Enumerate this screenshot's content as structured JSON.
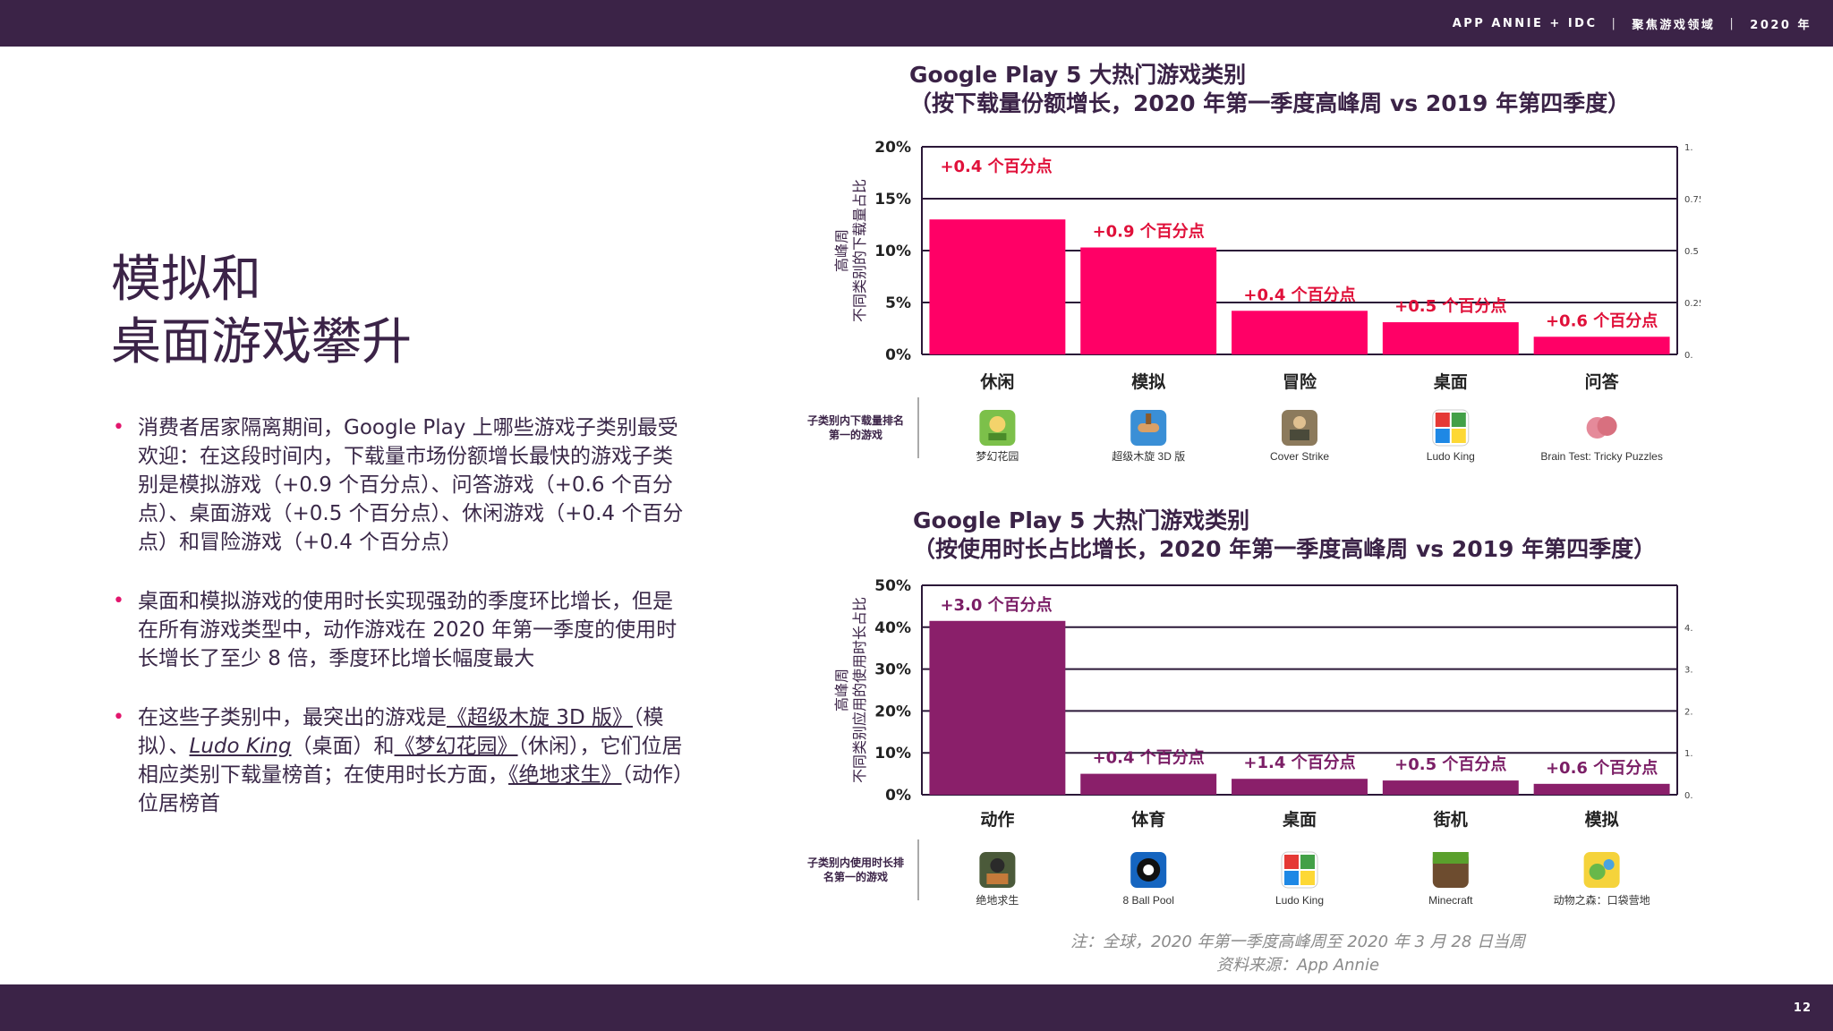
{
  "header": {
    "segments": [
      "APP ANNIE + IDC",
      "聚焦游戏领域",
      "2020 年"
    ],
    "separator": "|"
  },
  "footer": {
    "page_number": "12"
  },
  "title": {
    "line1": "模拟和",
    "line2": "桌面游戏攀升"
  },
  "bullets": {
    "b1": "消费者居家隔离期间，Google Play 上哪些游戏子类别最受欢迎：在这段时间内，下载量市场份额增长最快的游戏子类别是模拟游戏（+0.9 个百分点）、问答游戏（+0.6 个百分点）、桌面游戏（+0.5 个百分点）、休闲游戏（+0.4 个百分点）和冒险游戏（+0.4 个百分点）",
    "b2": "桌面和模拟游戏的使用时长实现强劲的季度环比增长，但是在所有游戏类型中，动作游戏在 2020 年第一季度的使用时长增长了至少 8 倍，季度环比增长幅度最大",
    "b3": {
      "t1": "在这些子类别中，最突出的游戏是",
      "l1": "《超级木旋 3D 版》",
      "t2": "（模拟）、",
      "l2": "Ludo King",
      "t3": "（桌面）和",
      "l3": "《梦幻花园》",
      "t4": "（休闲），它们位居相应类别下载量榜首；在使用时长方面，",
      "l4": "《绝地求生》",
      "t5": "（动作）位居榜首"
    }
  },
  "chart_data": [
    {
      "type": "bar",
      "title": "Google Play 5 大热门游戏类别",
      "subtitle": "（按下载量份额增长，2020 年第一季度高峰周 vs 2019 年第四季度）",
      "ylabel": "高峰周 不同类别的下载量占比",
      "ylabel_lines": [
        "高峰周",
        "不同类别的下载量占比"
      ],
      "ylim": [
        0,
        20
      ],
      "yticks": [
        "0%",
        "5%",
        "10%",
        "15%",
        "20%"
      ],
      "ytick_values": [
        0,
        5,
        10,
        15,
        20
      ],
      "right_ticks": [
        "0.",
        "0.25",
        "0.5",
        "0.75",
        "1."
      ],
      "categories": [
        "休闲",
        "模拟",
        "冒险",
        "桌面",
        "问答"
      ],
      "values": [
        13,
        10.3,
        4.2,
        3.1,
        1.7
      ],
      "data_labels": [
        "+0.4 个百分点",
        "+0.9 个百分点",
        "+0.4 个百分点",
        "+0.5 个百分点",
        "+0.6 个百分点"
      ],
      "row_label_lines": [
        "子类别内下载量排名",
        "第一的游戏"
      ],
      "top_games": [
        "梦幻花园",
        "超级木旋 3D 版",
        "Cover Strike",
        "Ludo King",
        "Brain Test: Tricky Puzzles"
      ],
      "game_icons": [
        "gardenscapes-icon",
        "woodturning-3d-icon",
        "cover-strike-icon",
        "ludo-king-icon",
        "brain-test-icon"
      ],
      "bar_color": "#ff0066",
      "label_color": "#e0103a"
    },
    {
      "type": "bar",
      "title": "Google Play 5 大热门游戏类别",
      "subtitle": "（按使用时长占比增长，2020 年第一季度高峰周 vs 2019 年第四季度）",
      "ylabel": "高峰周 不同类别应用的使用时长占比",
      "ylabel_lines": [
        "高峰周",
        "不同类别应用的使用时长占比"
      ],
      "ylim": [
        0,
        50
      ],
      "yticks": [
        "0%",
        "10%",
        "20%",
        "30%",
        "40%",
        "50%"
      ],
      "ytick_values": [
        0,
        10,
        20,
        30,
        40,
        50
      ],
      "right_ticks": [
        "0.",
        "1.",
        "2.",
        "3.",
        "4."
      ],
      "categories": [
        "动作",
        "体育",
        "桌面",
        "街机",
        "模拟"
      ],
      "values": [
        41.5,
        5,
        3.8,
        3.4,
        2.6
      ],
      "data_labels": [
        "+3.0 个百分点",
        "+0.4 个百分点",
        "+1.4 个百分点",
        "+0.5 个百分点",
        "+0.6 个百分点"
      ],
      "row_label_lines": [
        "子类别内使用时长排",
        "名第一的游戏"
      ],
      "top_games": [
        "绝地求生",
        "8 Ball Pool",
        "Ludo King",
        "Minecraft",
        "动物之森：口袋营地"
      ],
      "game_icons": [
        "pubg-icon",
        "8-ball-pool-icon",
        "ludo-king-icon",
        "minecraft-icon",
        "animal-crossing-icon"
      ],
      "bar_color": "#8a1f6a",
      "label_color": "#7b1e66"
    }
  ],
  "footnote": {
    "note": "注：全球，2020 年第一季度高峰周至 2020 年 3 月 28 日当周",
    "source": "资料来源：App Annie"
  }
}
